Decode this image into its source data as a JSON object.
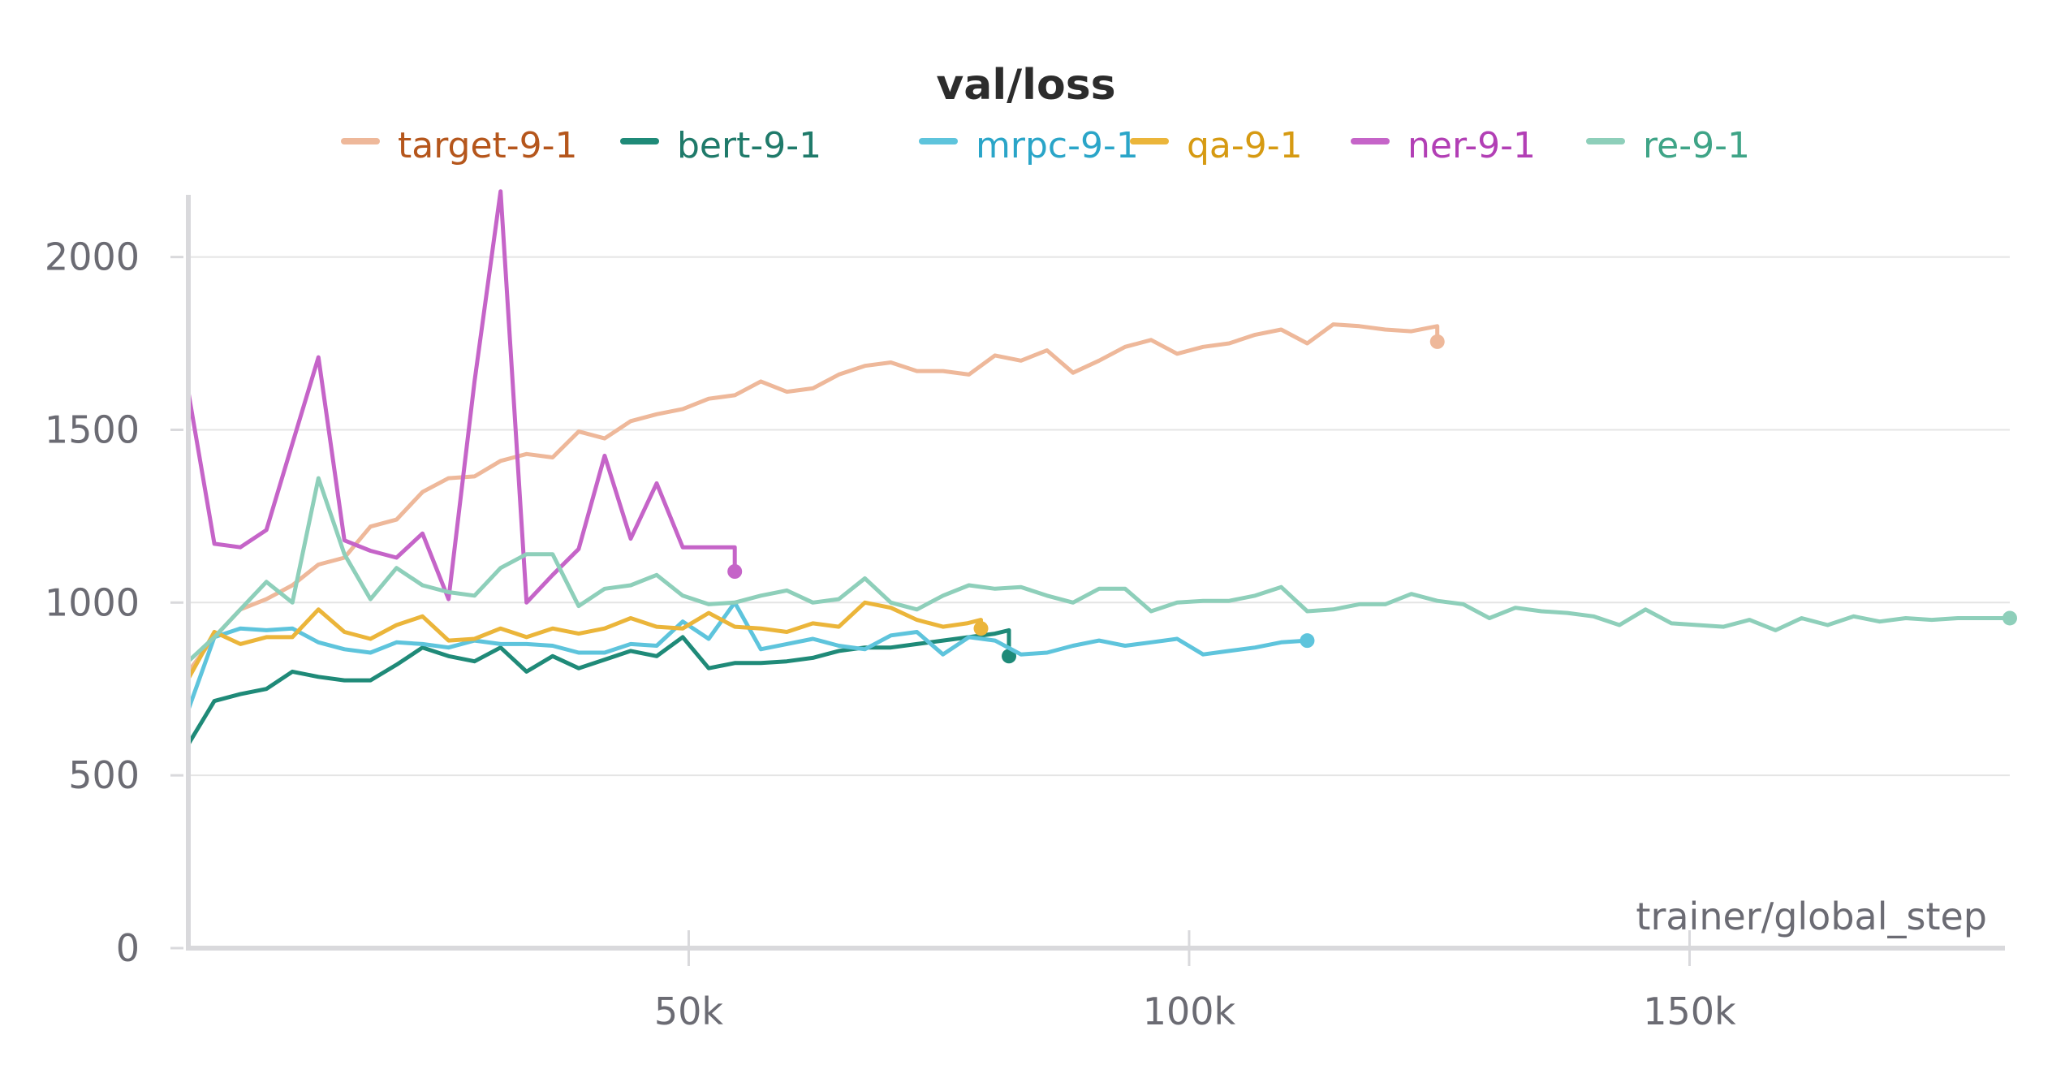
{
  "chart_data": {
    "type": "line",
    "title": "val/loss",
    "xlabel": "trainer/global_step",
    "ylabel": "",
    "xlim": [
      0,
      182000
    ],
    "ylim": [
      0,
      2180
    ],
    "x_ticks": [
      50000,
      100000,
      150000
    ],
    "x_tick_labels": [
      "50k",
      "100k",
      "150k"
    ],
    "y_ticks": [
      0,
      500,
      1000,
      1500,
      2000
    ],
    "y_tick_labels": [
      "0",
      "500",
      "1000",
      "1500",
      "2000"
    ],
    "legend_position": "top",
    "series": [
      {
        "name": "target-9-1",
        "color": "#eeb89a",
        "label_color": "#b5561c",
        "x": [
          0,
          2600,
          5200,
          7800,
          10400,
          13000,
          15600,
          18200,
          20800,
          23400,
          26000,
          28600,
          31200,
          33800,
          36400,
          39000,
          41600,
          44200,
          46800,
          49400,
          52000,
          54600,
          57200,
          59800,
          62400,
          65000,
          67600,
          70200,
          72800,
          75400,
          78000,
          80600,
          83200,
          85800,
          88400,
          91000,
          93600,
          96200,
          98800,
          101400,
          104000,
          106600,
          109200,
          111800,
          114400,
          117000,
          119600,
          122200,
          124800,
          124800
        ],
        "y": [
          800,
          900,
          980,
          1010,
          1050,
          1110,
          1130,
          1220,
          1240,
          1320,
          1360,
          1365,
          1410,
          1430,
          1420,
          1495,
          1475,
          1525,
          1545,
          1560,
          1590,
          1600,
          1640,
          1610,
          1620,
          1660,
          1685,
          1695,
          1670,
          1670,
          1660,
          1715,
          1700,
          1730,
          1665,
          1700,
          1740,
          1760,
          1720,
          1740,
          1750,
          1775,
          1790,
          1750,
          1805,
          1800,
          1790,
          1785,
          1800,
          1755
        ]
      },
      {
        "name": "bert-9-1",
        "color": "#1f8a78",
        "label_color": "#1f7a6a",
        "x": [
          0,
          2600,
          5200,
          7800,
          10400,
          13000,
          15600,
          18200,
          20800,
          23400,
          26000,
          28600,
          31200,
          33800,
          36400,
          39000,
          41600,
          44200,
          46800,
          49400,
          52000,
          54600,
          57200,
          59800,
          62400,
          65000,
          67600,
          70200,
          72800,
          75400,
          78000,
          80600,
          82000,
          82000
        ],
        "y": [
          590,
          715,
          735,
          750,
          800,
          785,
          775,
          775,
          820,
          870,
          845,
          830,
          870,
          800,
          845,
          810,
          835,
          860,
          845,
          900,
          810,
          825,
          825,
          830,
          840,
          860,
          870,
          870,
          880,
          890,
          900,
          910,
          920,
          845
        ]
      },
      {
        "name": "mrpc-9-1",
        "color": "#5ec4dc",
        "label_color": "#2aa5c8",
        "x": [
          0,
          2600,
          5200,
          7800,
          10400,
          13000,
          15600,
          18200,
          20800,
          23400,
          26000,
          28600,
          31200,
          33800,
          36400,
          39000,
          41600,
          44200,
          46800,
          49400,
          52000,
          54600,
          57200,
          59800,
          62400,
          65000,
          67600,
          70200,
          72800,
          75400,
          78000,
          80600,
          83200,
          85800,
          88400,
          91000,
          93600,
          96200,
          98800,
          101400,
          104000,
          106600,
          109200,
          111800,
          111800
        ],
        "y": [
          690,
          900,
          925,
          920,
          925,
          885,
          865,
          855,
          885,
          880,
          870,
          890,
          880,
          880,
          875,
          855,
          855,
          880,
          875,
          945,
          895,
          1000,
          865,
          880,
          895,
          875,
          865,
          905,
          915,
          850,
          900,
          890,
          850,
          855,
          875,
          890,
          875,
          885,
          895,
          850,
          860,
          870,
          885,
          890,
          890
        ]
      },
      {
        "name": "qa-9-1",
        "color": "#ebb53a",
        "label_color": "#d69a12",
        "x": [
          0,
          2600,
          5200,
          7800,
          10400,
          13000,
          15600,
          18200,
          20800,
          23400,
          26000,
          28600,
          31200,
          33800,
          36400,
          39000,
          41600,
          44200,
          46800,
          49400,
          52000,
          54600,
          57200,
          59800,
          62400,
          65000,
          67600,
          70200,
          72800,
          75400,
          77800,
          79200,
          79200
        ],
        "y": [
          780,
          915,
          880,
          900,
          900,
          980,
          915,
          895,
          935,
          960,
          890,
          895,
          925,
          900,
          925,
          910,
          925,
          955,
          930,
          925,
          970,
          930,
          925,
          915,
          940,
          930,
          1000,
          985,
          950,
          930,
          940,
          950,
          925
        ]
      },
      {
        "name": "ner-9-1",
        "color": "#c564c8",
        "label_color": "#b23fb5",
        "x": [
          0,
          2600,
          5200,
          7800,
          10400,
          13000,
          15600,
          18200,
          20800,
          23400,
          26000,
          28600,
          31200,
          33800,
          36400,
          39000,
          41600,
          44200,
          46800,
          49400,
          52000,
          54600,
          54600
        ],
        "y": [
          1610,
          1170,
          1160,
          1210,
          1460,
          1710,
          1180,
          1150,
          1130,
          1200,
          1010,
          1640,
          2190,
          1000,
          1080,
          1155,
          1425,
          1185,
          1345,
          1160,
          1160,
          1160,
          1090
        ]
      },
      {
        "name": "re-9-1",
        "color": "#8ecfba",
        "label_color": "#3fa487",
        "x": [
          0,
          2600,
          5200,
          7800,
          10400,
          13000,
          15600,
          18200,
          20800,
          23400,
          26000,
          28600,
          31200,
          33800,
          36400,
          39000,
          41600,
          44200,
          46800,
          49400,
          52000,
          54600,
          57200,
          59800,
          62400,
          65000,
          67600,
          70200,
          72800,
          75400,
          78000,
          80600,
          83200,
          85800,
          88400,
          91000,
          93600,
          96200,
          98800,
          101400,
          104000,
          106600,
          109200,
          111800,
          114400,
          117000,
          119600,
          122200,
          124800,
          127400,
          130000,
          132600,
          135200,
          137800,
          140400,
          143000,
          145600,
          148200,
          150800,
          153400,
          156000,
          158600,
          161200,
          163800,
          166400,
          169000,
          171600,
          174200,
          176800,
          179400,
          182000
        ],
        "y": [
          830,
          900,
          980,
          1060,
          1000,
          1360,
          1140,
          1010,
          1100,
          1050,
          1030,
          1020,
          1100,
          1140,
          1140,
          990,
          1040,
          1050,
          1080,
          1020,
          995,
          1000,
          1020,
          1035,
          1000,
          1010,
          1070,
          1000,
          980,
          1020,
          1050,
          1040,
          1045,
          1020,
          1000,
          1040,
          1040,
          975,
          1000,
          1005,
          1005,
          1020,
          1045,
          975,
          980,
          995,
          995,
          1025,
          1005,
          995,
          955,
          985,
          975,
          970,
          960,
          935,
          980,
          940,
          935,
          930,
          950,
          920,
          955,
          935,
          960,
          945,
          955,
          950,
          955,
          955,
          955
        ]
      }
    ]
  }
}
